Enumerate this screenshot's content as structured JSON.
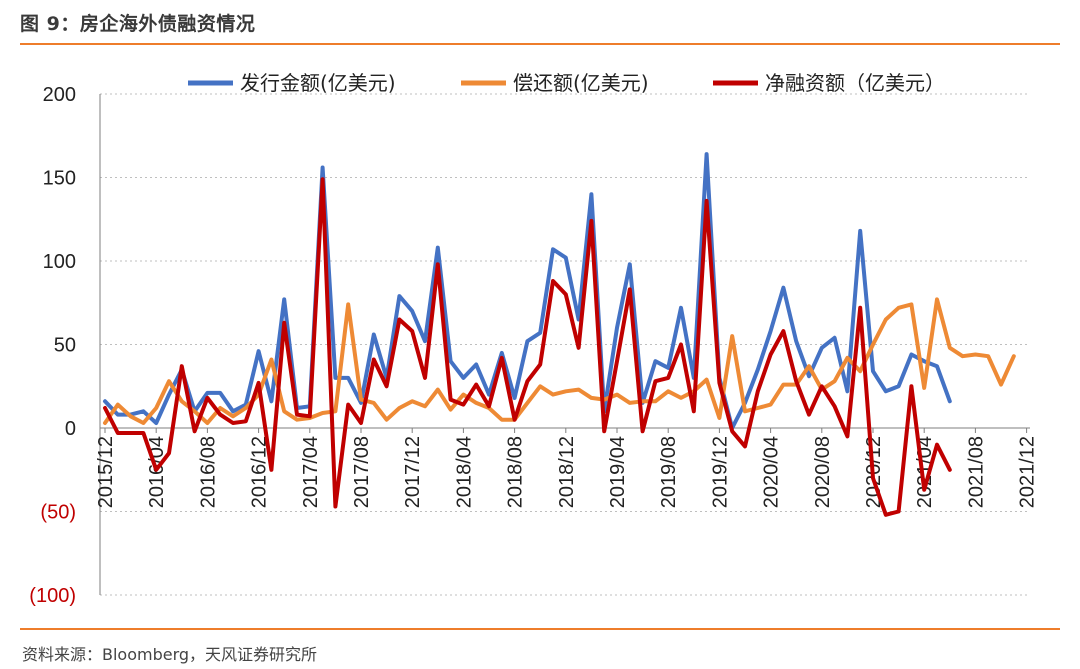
{
  "header": {
    "title": "图 9：房企海外债融资情况"
  },
  "footer": {
    "source": "资料来源：Bloomberg，天风证券研究所"
  },
  "colors": {
    "accent_rule": "#ee7d2b",
    "negative_label": "#c00000"
  },
  "chart_data": {
    "type": "line",
    "title": "",
    "xlabel": "",
    "ylabel": "",
    "ylim": [
      -100,
      200
    ],
    "y_ticks": [
      {
        "value": 200,
        "label": "200",
        "negative": false
      },
      {
        "value": 150,
        "label": "150",
        "negative": false
      },
      {
        "value": 100,
        "label": "100",
        "negative": false
      },
      {
        "value": 50,
        "label": "50",
        "negative": false
      },
      {
        "value": 0,
        "label": "0",
        "negative": false
      },
      {
        "value": -50,
        "label": "(50)",
        "negative": true
      },
      {
        "value": -100,
        "label": "(100)",
        "negative": true
      }
    ],
    "x": [
      "2015/12",
      "2016/01",
      "2016/02",
      "2016/03",
      "2016/04",
      "2016/05",
      "2016/06",
      "2016/07",
      "2016/08",
      "2016/09",
      "2016/10",
      "2016/11",
      "2016/12",
      "2017/01",
      "2017/02",
      "2017/03",
      "2017/04",
      "2017/05",
      "2017/06",
      "2017/07",
      "2017/08",
      "2017/09",
      "2017/10",
      "2017/11",
      "2017/12",
      "2018/01",
      "2018/02",
      "2018/03",
      "2018/04",
      "2018/05",
      "2018/06",
      "2018/07",
      "2018/08",
      "2018/09",
      "2018/10",
      "2018/11",
      "2018/12",
      "2019/01",
      "2019/02",
      "2019/03",
      "2019/04",
      "2019/05",
      "2019/06",
      "2019/07",
      "2019/08",
      "2019/09",
      "2019/10",
      "2019/11",
      "2019/12",
      "2020/01",
      "2020/02",
      "2020/03",
      "2020/04",
      "2020/05",
      "2020/06",
      "2020/07",
      "2020/08",
      "2020/09",
      "2020/10",
      "2020/11",
      "2020/12",
      "2021/01",
      "2021/02",
      "2021/03",
      "2021/04",
      "2021/05",
      "2021/06",
      "2021/07",
      "2021/08",
      "2021/09",
      "2021/10",
      "2021/11",
      "2021/12"
    ],
    "x_tick_labels": [
      "2015/12",
      "2016/04",
      "2016/08",
      "2016/12",
      "2017/04",
      "2017/08",
      "2017/12",
      "2018/04",
      "2018/08",
      "2018/12",
      "2019/04",
      "2019/08",
      "2019/12",
      "2020/04",
      "2020/08",
      "2020/12",
      "2021/04",
      "2021/08",
      "2021/12"
    ],
    "grid": true,
    "legend_position": "top",
    "series": [
      {
        "name": "发行金额(亿美元)",
        "color": "#4472c4",
        "values": [
          16,
          8,
          8,
          10,
          3,
          20,
          35,
          10,
          21,
          21,
          10,
          14,
          46,
          16,
          77,
          12,
          13,
          156,
          30,
          30,
          15,
          56,
          30,
          79,
          70,
          52,
          108,
          40,
          30,
          38,
          20,
          45,
          18,
          52,
          57,
          107,
          102,
          65,
          140,
          10,
          60,
          98,
          15,
          40,
          36,
          72,
          30,
          164,
          30,
          0,
          15,
          35,
          58,
          84,
          52,
          31,
          48,
          54,
          22,
          118,
          34,
          22,
          25,
          44,
          40,
          37,
          16,
          null,
          null,
          null,
          null,
          null,
          null
        ]
      },
      {
        "name": "偿还额(亿美元)",
        "color": "#ee8a35",
        "values": [
          3,
          14,
          7,
          3,
          12,
          28,
          16,
          10,
          3,
          12,
          7,
          12,
          20,
          41,
          10,
          5,
          6,
          9,
          10,
          74,
          17,
          15,
          5,
          12,
          16,
          13,
          23,
          11,
          20,
          15,
          12,
          5,
          5,
          15,
          25,
          20,
          22,
          23,
          18,
          17,
          20,
          15,
          16,
          16,
          22,
          18,
          22,
          29,
          6,
          55,
          10,
          12,
          14,
          26,
          26,
          37,
          23,
          28,
          42,
          34,
          50,
          65,
          72,
          74,
          24,
          77,
          48,
          43,
          44,
          43,
          26,
          43,
          null
        ]
      },
      {
        "name": "净融资额（亿美元）",
        "color": "#c00000",
        "values": [
          12,
          -3,
          -3,
          -3,
          -25,
          -15,
          37,
          -2,
          18,
          8,
          3,
          4,
          27,
          -25,
          63,
          8,
          7,
          149,
          -47,
          14,
          3,
          41,
          25,
          65,
          58,
          30,
          98,
          17,
          14,
          26,
          13,
          42,
          5,
          28,
          38,
          88,
          80,
          48,
          124,
          -2,
          40,
          83,
          -2,
          28,
          30,
          50,
          10,
          136,
          27,
          -2,
          -11,
          22,
          44,
          58,
          28,
          8,
          25,
          13,
          -5,
          72,
          -30,
          -52,
          -50,
          25,
          -37,
          -10,
          -25,
          null,
          null,
          null,
          null,
          null,
          null
        ]
      }
    ]
  }
}
